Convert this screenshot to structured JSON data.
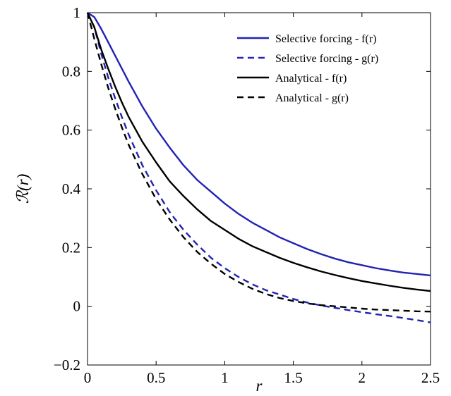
{
  "chart_data": {
    "type": "line",
    "title": "",
    "xlabel": "r",
    "ylabel": "ℛ(r)",
    "xlim": [
      0,
      2.5
    ],
    "ylim": [
      -0.2,
      1
    ],
    "xticks": [
      0,
      0.5,
      1,
      1.5,
      2,
      2.5
    ],
    "xtick_labels": [
      "0",
      "0.5",
      "1",
      "1.5",
      "2",
      "2.5"
    ],
    "yticks": [
      -0.2,
      0,
      0.2,
      0.4,
      0.6,
      0.8,
      1
    ],
    "ytick_labels": [
      "−0.2",
      "0",
      "0.2",
      "0.4",
      "0.6",
      "0.8",
      "1"
    ],
    "grid": false,
    "legend_position": "top-right",
    "series": [
      {
        "name": "Selective forcing - f(r)",
        "color": "#2222b4",
        "dash": "solid",
        "x": [
          0,
          0.05,
          0.1,
          0.15,
          0.2,
          0.25,
          0.3,
          0.4,
          0.5,
          0.6,
          0.7,
          0.8,
          0.9,
          1.0,
          1.1,
          1.2,
          1.3,
          1.4,
          1.5,
          1.6,
          1.7,
          1.8,
          1.9,
          2.0,
          2.1,
          2.2,
          2.3,
          2.4,
          2.5
        ],
        "y": [
          1.0,
          0.985,
          0.945,
          0.9,
          0.855,
          0.81,
          0.765,
          0.68,
          0.605,
          0.54,
          0.48,
          0.43,
          0.39,
          0.35,
          0.315,
          0.285,
          0.26,
          0.235,
          0.215,
          0.195,
          0.178,
          0.163,
          0.15,
          0.14,
          0.13,
          0.122,
          0.115,
          0.11,
          0.105
        ]
      },
      {
        "name": "Selective forcing - g(r)",
        "color": "#2222b4",
        "dash": "dashed",
        "x": [
          0,
          0.05,
          0.1,
          0.15,
          0.2,
          0.25,
          0.3,
          0.4,
          0.5,
          0.6,
          0.7,
          0.8,
          0.9,
          1.0,
          1.1,
          1.2,
          1.3,
          1.4,
          1.5,
          1.6,
          1.7,
          1.8,
          1.9,
          2.0,
          2.1,
          2.2,
          2.3,
          2.4,
          2.5
        ],
        "y": [
          1.0,
          0.95,
          0.86,
          0.78,
          0.71,
          0.645,
          0.585,
          0.48,
          0.395,
          0.32,
          0.26,
          0.21,
          0.165,
          0.13,
          0.1,
          0.075,
          0.055,
          0.04,
          0.025,
          0.013,
          0.003,
          -0.005,
          -0.013,
          -0.02,
          -0.027,
          -0.033,
          -0.04,
          -0.047,
          -0.055
        ]
      },
      {
        "name": "Analytical - f(r)",
        "color": "#000000",
        "dash": "solid",
        "x": [
          0,
          0.05,
          0.1,
          0.15,
          0.2,
          0.25,
          0.3,
          0.4,
          0.5,
          0.6,
          0.7,
          0.8,
          0.9,
          1.0,
          1.1,
          1.2,
          1.3,
          1.4,
          1.5,
          1.6,
          1.7,
          1.8,
          1.9,
          2.0,
          2.1,
          2.2,
          2.3,
          2.4,
          2.5
        ],
        "y": [
          1.0,
          0.95,
          0.875,
          0.81,
          0.75,
          0.695,
          0.645,
          0.56,
          0.49,
          0.425,
          0.375,
          0.33,
          0.29,
          0.26,
          0.23,
          0.205,
          0.185,
          0.165,
          0.148,
          0.133,
          0.119,
          0.107,
          0.096,
          0.086,
          0.078,
          0.07,
          0.063,
          0.057,
          0.052
        ]
      },
      {
        "name": "Analytical - g(r)",
        "color": "#000000",
        "dash": "dashed",
        "x": [
          0,
          0.05,
          0.1,
          0.15,
          0.2,
          0.25,
          0.3,
          0.4,
          0.5,
          0.6,
          0.7,
          0.8,
          0.9,
          1.0,
          1.1,
          1.2,
          1.3,
          1.4,
          1.5,
          1.6,
          1.7,
          1.8,
          1.9,
          2.0,
          2.1,
          2.2,
          2.3,
          2.4,
          2.5
        ],
        "y": [
          1.0,
          0.91,
          0.825,
          0.745,
          0.675,
          0.61,
          0.55,
          0.45,
          0.365,
          0.295,
          0.235,
          0.185,
          0.145,
          0.11,
          0.083,
          0.06,
          0.042,
          0.028,
          0.018,
          0.01,
          0.004,
          0.0,
          -0.004,
          -0.008,
          -0.011,
          -0.013,
          -0.015,
          -0.017,
          -0.018
        ]
      }
    ]
  }
}
